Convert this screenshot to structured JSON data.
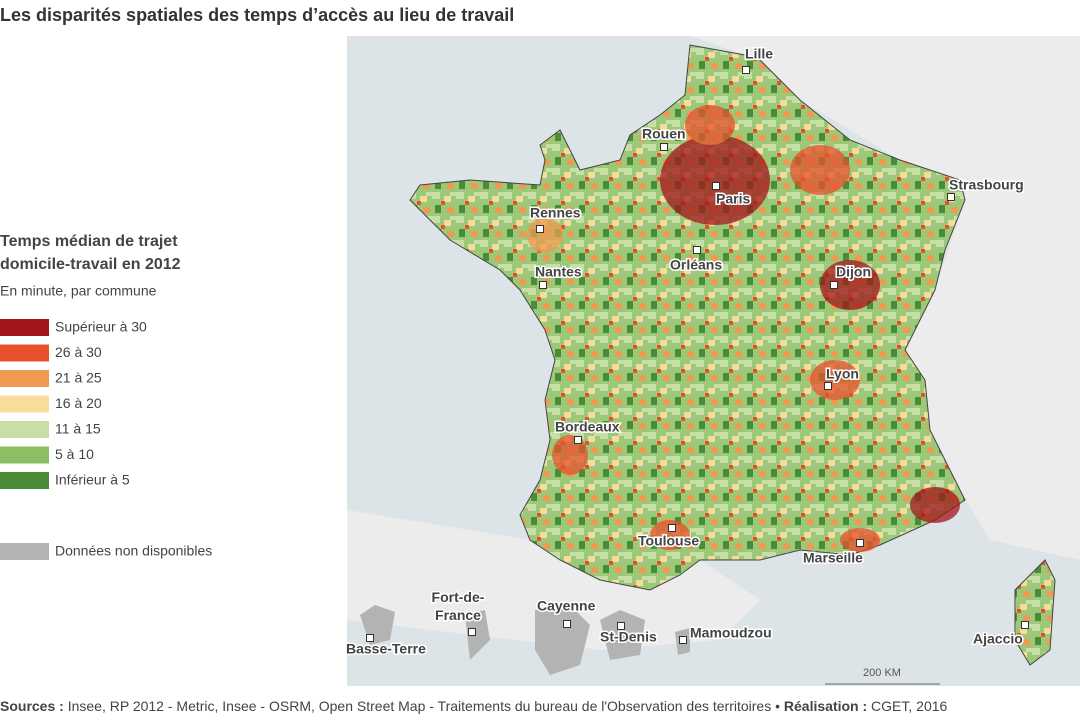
{
  "title": "Les disparités spatiales des temps d’accès au lieu de travail",
  "legend": {
    "title_line1": "Temps médian de trajet",
    "title_line2": "domicile-travail en 2012",
    "subtitle": "En minute, par commune",
    "items": [
      {
        "label": "Supérieur à 30",
        "color": "#a3141b"
      },
      {
        "label": "26 à 30",
        "color": "#e8512c"
      },
      {
        "label": "21 à 25",
        "color": "#ee9a50"
      },
      {
        "label": "16 à 20",
        "color": "#f8dc9c"
      },
      {
        "label": "11 à 15",
        "color": "#c7dfa4"
      },
      {
        "label": "5 à 10",
        "color": "#8cbf63"
      },
      {
        "label": "Inférieur à 5",
        "color": "#4a8d36"
      }
    ],
    "na": {
      "label": "Données non disponibles",
      "color": "#b3b3b3"
    }
  },
  "cities": [
    "Lille",
    "Rouen",
    "Paris",
    "Strasbourg",
    "Rennes",
    "Orléans",
    "Nantes",
    "Dijon",
    "Lyon",
    "Bordeaux",
    "Toulouse",
    "Marseille",
    "Ajaccio"
  ],
  "overseas": [
    "Basse-Terre",
    "Fort-de-France",
    "Cayenne",
    "St-Denis",
    "Mamoudzou"
  ],
  "scale": "200 KM",
  "footer": {
    "sources_label": "Sources :",
    "sources_text": "Insee, RP 2012  - Metric, Insee - OSRM, Open Street Map - Traitements du bureau de l'Observation des territoires",
    "separator": "•",
    "realisation_label": "Réalisation :",
    "realisation_text": "CGET, 2016"
  }
}
